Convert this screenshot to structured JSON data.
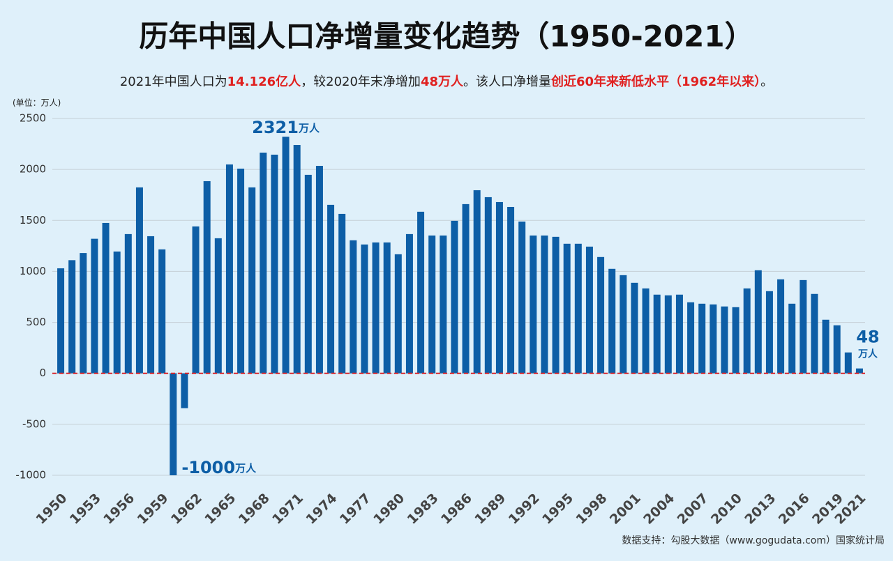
{
  "chart_data": {
    "type": "bar",
    "title": "历年中国人口净增量变化趋势（1950-2021）",
    "subtitle": [
      {
        "text": "2021年中国人口为",
        "highlight": false
      },
      {
        "text": "14.126亿人",
        "highlight": true
      },
      {
        "text": "，较2020年末净增加",
        "highlight": false
      },
      {
        "text": "48万人",
        "highlight": true
      },
      {
        "text": "。该人口净增量",
        "highlight": false
      },
      {
        "text": "创近60年来新低水平（1962年以来）",
        "highlight": true
      },
      {
        "text": "。",
        "highlight": false
      }
    ],
    "unit_label": "(单位：万人)",
    "source": "数据支持：勾股大数据（www.gogudata.com）国家统计局",
    "categories": [
      "1950",
      null,
      null,
      "1953",
      null,
      null,
      "1956",
      null,
      null,
      "1959",
      null,
      null,
      "1962",
      null,
      null,
      "1965",
      null,
      null,
      "1968",
      null,
      null,
      "1971",
      null,
      null,
      "1974",
      null,
      null,
      "1977",
      null,
      null,
      "1980",
      null,
      null,
      "1983",
      null,
      null,
      "1986",
      null,
      null,
      "1989",
      null,
      null,
      "1992",
      null,
      null,
      "1995",
      null,
      null,
      "1998",
      null,
      null,
      "2001",
      null,
      null,
      "2004",
      null,
      null,
      "2007",
      null,
      null,
      "2010",
      null,
      null,
      "2013",
      null,
      null,
      "2016",
      null,
      null,
      "2019",
      null,
      "2021"
    ],
    "values": [
      1030,
      1110,
      1180,
      1320,
      1475,
      1195,
      1366,
      1824,
      1345,
      1216,
      -1000,
      -342,
      1441,
      1885,
      1325,
      2049,
      2008,
      1824,
      2165,
      2145,
      2321,
      2240,
      1947,
      2035,
      1653,
      1564,
      1305,
      1264,
      1284,
      1284,
      1168,
      1366,
      1585,
      1352,
      1352,
      1496,
      1660,
      1796,
      1728,
      1680,
      1632,
      1489,
      1352,
      1352,
      1339,
      1271,
      1271,
      1243,
      1141,
      1025,
      963,
      888,
      833,
      772,
      765,
      772,
      697,
      683,
      676,
      656,
      649,
      833,
      1011,
      806,
      922,
      683,
      915,
      779,
      526,
      471,
      205,
      48
    ],
    "value_labels": [
      null,
      null,
      null,
      null,
      null,
      null,
      null,
      null,
      null,
      null,
      "-1000",
      null,
      null,
      null,
      null,
      null,
      null,
      null,
      null,
      null,
      "2321",
      null,
      null,
      null,
      null,
      null,
      null,
      null,
      null,
      null,
      null,
      null,
      null,
      null,
      null,
      null,
      null,
      null,
      null,
      null,
      null,
      null,
      null,
      null,
      null,
      null,
      null,
      null,
      null,
      null,
      null,
      null,
      null,
      null,
      null,
      null,
      null,
      null,
      null,
      null,
      null,
      null,
      null,
      null,
      null,
      null,
      null,
      null,
      null,
      null,
      null,
      "48"
    ],
    "value_label_unit": "万人",
    "color": "#0d5ea6",
    "zero_line_color": "#d9262c",
    "ylim": [
      -1000,
      2500
    ],
    "yticks": [
      -1000,
      -500,
      0,
      500,
      1000,
      1500,
      2000,
      2500
    ],
    "grid": true
  }
}
